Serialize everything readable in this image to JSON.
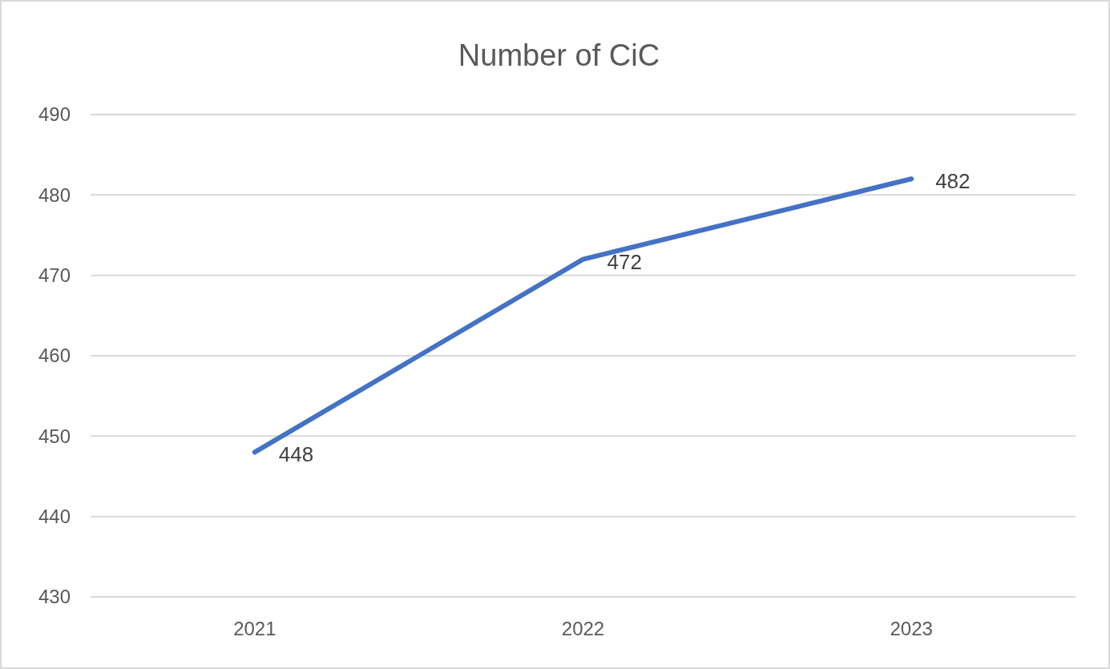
{
  "chart_data": {
    "type": "line",
    "title": "Number of CiC",
    "categories": [
      "2021",
      "2022",
      "2023"
    ],
    "series": [
      {
        "color": "#4472c4",
        "values": [
          448,
          472,
          482
        ]
      }
    ],
    "ylim": [
      430,
      490
    ],
    "yticks": [
      430,
      440,
      450,
      460,
      470,
      480,
      490
    ],
    "grid": "y",
    "data_labels": true,
    "marker": "none",
    "line_style": "solid"
  }
}
